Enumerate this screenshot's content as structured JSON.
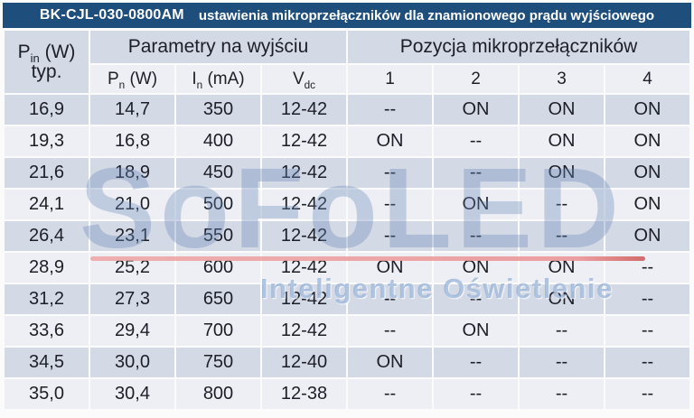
{
  "title": {
    "model": "BK-CJL-030-0800AM",
    "subtitle": "ustawienia mikroprzełączników dla znamionowego prądu wyjściowego"
  },
  "table": {
    "col1_header": {
      "symbol": "P",
      "sub": "in",
      "unit": " (W)",
      "line2": "typ."
    },
    "group_headers": {
      "output": "Parametry na wyjściu",
      "switches": "Pozycja mikroprzełączników"
    },
    "sub_headers": {
      "pn": {
        "symbol": "P",
        "sub": "n",
        "unit": " (W)"
      },
      "in": {
        "symbol": "I",
        "sub": "n",
        "unit": " (mA)"
      },
      "vdc": {
        "symbol": "V",
        "sub": "dc",
        "unit": ""
      },
      "switch_cols": [
        "1",
        "2",
        "3",
        "4"
      ]
    },
    "rows": [
      [
        "16,9",
        "14,7",
        "350",
        "12-42",
        "--",
        "ON",
        "ON",
        "ON"
      ],
      [
        "19,3",
        "16,8",
        "400",
        "12-42",
        "ON",
        "--",
        "ON",
        "ON"
      ],
      [
        "21,6",
        "18,9",
        "450",
        "12-42",
        "--",
        "--",
        "ON",
        "ON"
      ],
      [
        "24,1",
        "21,0",
        "500",
        "12-42",
        "--",
        "ON",
        "--",
        "ON"
      ],
      [
        "26,4",
        "23,1",
        "550",
        "12-42",
        "--",
        "--",
        "--",
        "ON"
      ],
      [
        "28,9",
        "25,2",
        "600",
        "12-42",
        "ON",
        "ON",
        "ON",
        "--"
      ],
      [
        "31,2",
        "27,3",
        "650",
        "12-42",
        "--",
        "--",
        "ON",
        "--"
      ],
      [
        "33,6",
        "29,4",
        "700",
        "12-42",
        "--",
        "ON",
        "--",
        "--"
      ],
      [
        "34,5",
        "30,0",
        "750",
        "12-40",
        "ON",
        "--",
        "--",
        "--"
      ],
      [
        "35,0",
        "30,4",
        "800",
        "12-38",
        "--",
        "--",
        "--",
        "--"
      ]
    ]
  },
  "watermark": {
    "text": "SoFoLED",
    "tagline": "Inteligentne Oświetlenie"
  },
  "colors": {
    "header_bar": "#1e4e7b",
    "band_dark": "#d4d9e6",
    "band_light": "#edeff4",
    "watermark_blue": "#6888b7",
    "underline_red": "#ec9696"
  }
}
